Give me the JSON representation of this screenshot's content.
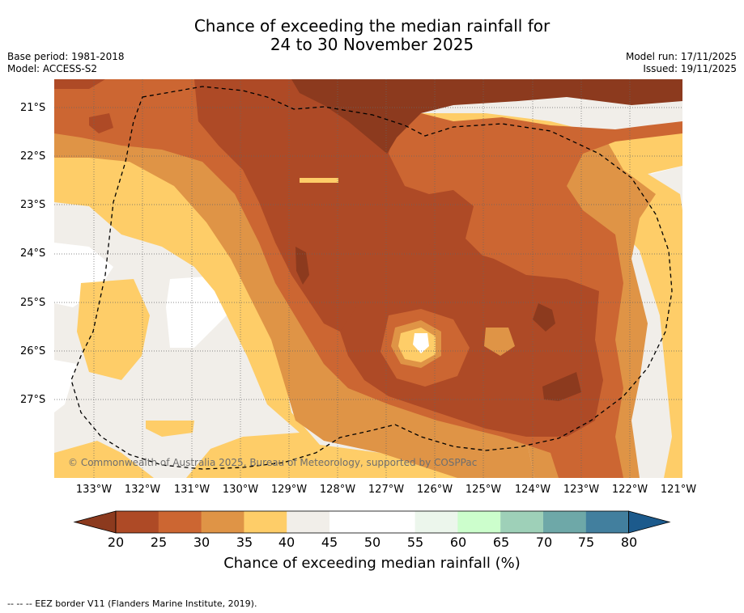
{
  "title_line1": "Chance of exceeding the median rainfall for",
  "title_line2": "24 to 30 November 2025",
  "base_period": "Base period: 1981-2018",
  "model": "Model: ACCESS-S2",
  "model_run": "Model run: 17/11/2025",
  "issued": "Issued: 19/11/2025",
  "copyright": "© Commonwealth of Australia 2025, Bureau of Meteorology, supported by COSPPac",
  "lon_ticks": [
    "133°W",
    "132°W",
    "131°W",
    "130°W",
    "129°W",
    "128°W",
    "127°W",
    "126°W",
    "125°W",
    "124°W",
    "123°W",
    "122°W",
    "121°W"
  ],
  "lat_ticks": [
    "21°S",
    "22°S",
    "23°S",
    "24°S",
    "25°S",
    "26°S",
    "27°S"
  ],
  "colorbar": {
    "title": "Chance of exceeding median rainfall (%)",
    "tick_labels": [
      "20",
      "25",
      "30",
      "35",
      "40",
      "45",
      "50",
      "55",
      "60",
      "65",
      "70",
      "75",
      "80"
    ],
    "colors": [
      "#8c3a1e",
      "#ae4a26",
      "#cc6632",
      "#df9446",
      "#fecd68",
      "#f1eee9",
      "#ffffff",
      "#ffffff",
      "#ecf6ec",
      "#ccfecc",
      "#9ed0b8",
      "#6ea8a8",
      "#427f9e",
      "#1c5a8c"
    ]
  },
  "footnote": "--  --  -- EEZ border V11 (Flanders Marine Institute, 2019).",
  "colors": {
    "c20": "#8c3a1e",
    "c25": "#ae4a26",
    "c30": "#cc6632",
    "c35": "#df9446",
    "c40": "#fecd68",
    "c45": "#f1eee9",
    "c50": "#ffffff"
  }
}
